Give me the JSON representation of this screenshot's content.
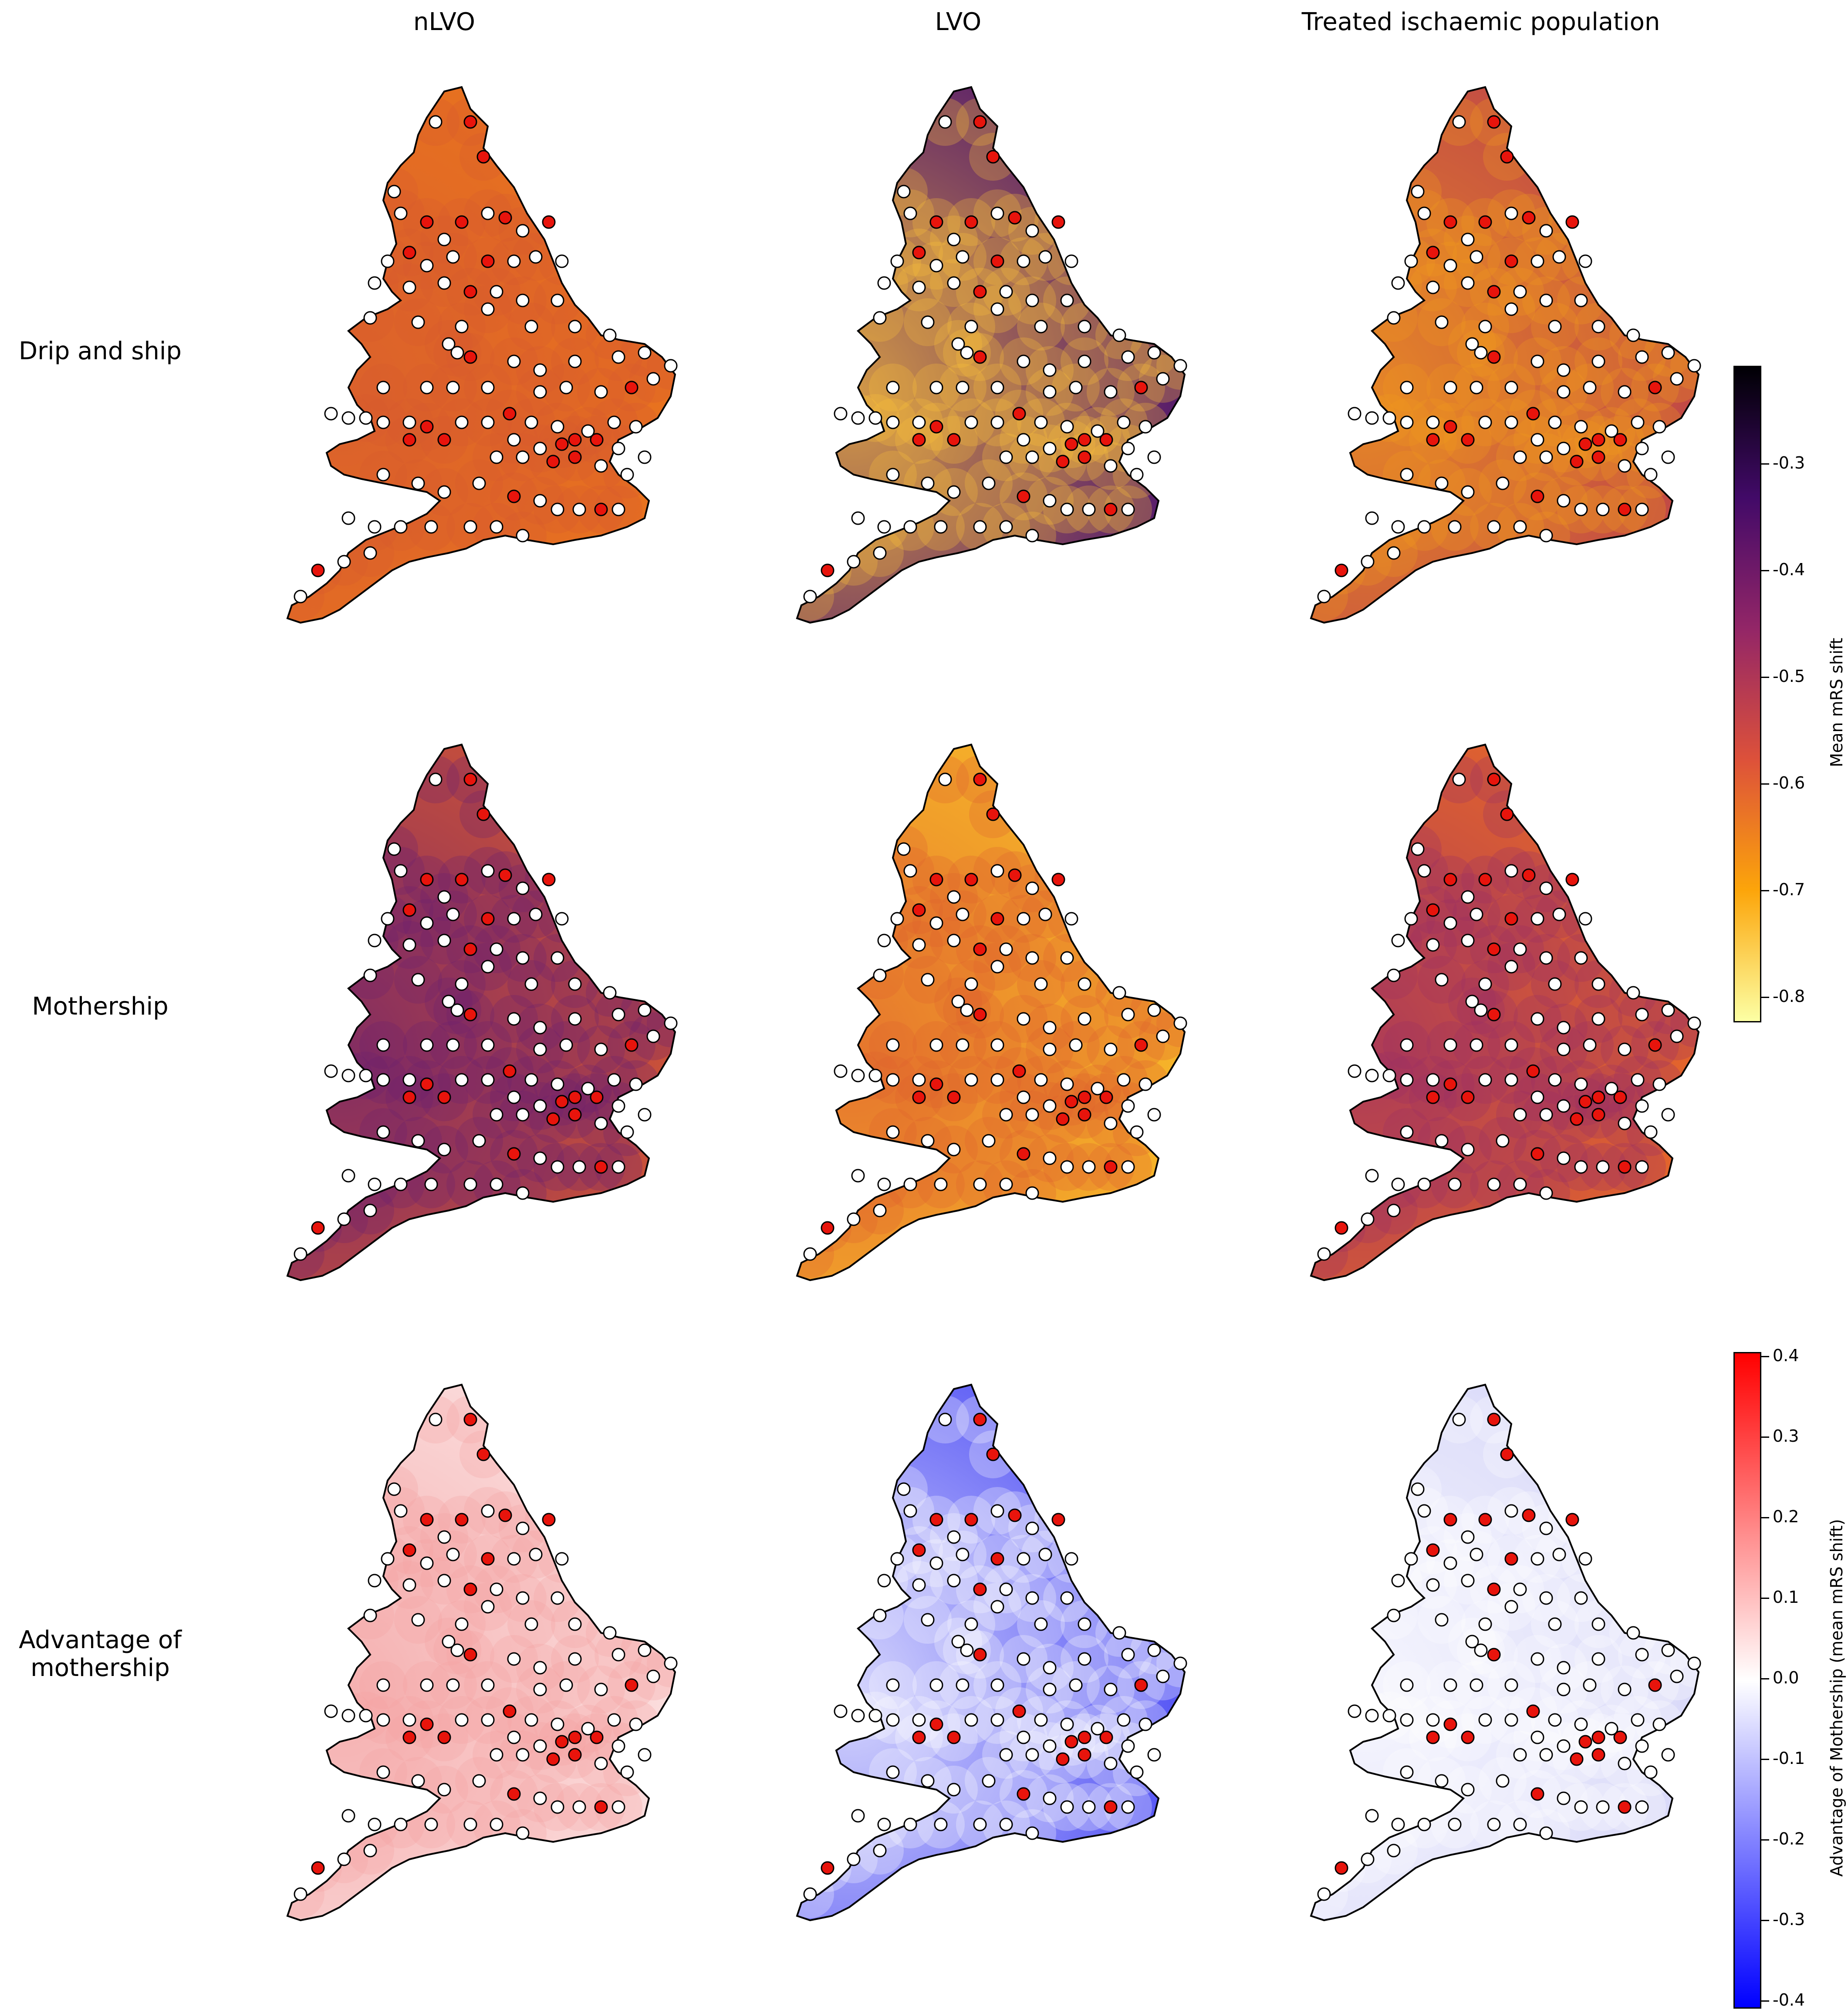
{
  "columns": [
    "nLVO",
    "LVO",
    "Treated ischaemic population"
  ],
  "rows": [
    "Drip and ship",
    "Mothership",
    "Advantage of\nmothership"
  ],
  "colorbar_mrs": {
    "label": "Mean mRS shift",
    "ticks": [
      "-0.3",
      "-0.4",
      "-0.5",
      "-0.6",
      "-0.7",
      "-0.8"
    ],
    "colors": [
      "#000004",
      "#420a68",
      "#932667",
      "#dd513a",
      "#fca50a",
      "#fcffa4"
    ]
  },
  "colorbar_adv": {
    "label": "Advantage of Mothership (mean mRS shift)",
    "ticks": [
      "0.4",
      "0.3",
      "0.2",
      "0.1",
      "0.0",
      "-0.1",
      "-0.2",
      "-0.3",
      "-0.4"
    ],
    "colors": [
      "#ff0000",
      "#ffffff",
      "#0000ff"
    ]
  },
  "panel_fills": {
    "r0c0": {
      "base": "#e8721f",
      "tint": "#d65a30"
    },
    "r0c1": {
      "base": "#5a1f6a",
      "tint": "#fcc33a"
    },
    "r0c2": {
      "base": "#c24a45",
      "tint": "#f29b1c"
    },
    "r1c0": {
      "base": "#c8503a",
      "tint": "#6a2070"
    },
    "r1c1": {
      "base": "#f6b329",
      "tint": "#e0602f"
    },
    "r1c2": {
      "base": "#e3642c",
      "tint": "#9a2d66"
    },
    "r2c0": {
      "base": "#fbdcdc",
      "tint": "#f3a0a0"
    },
    "r2c1": {
      "base": "#5a5af5",
      "tint": "#ffffff"
    },
    "r2c2": {
      "base": "#dadaf9",
      "tint": "#ffffff"
    }
  },
  "legend_marker_colors": {
    "csc": "#e8140c",
    "ivt": "#ffffff"
  }
}
